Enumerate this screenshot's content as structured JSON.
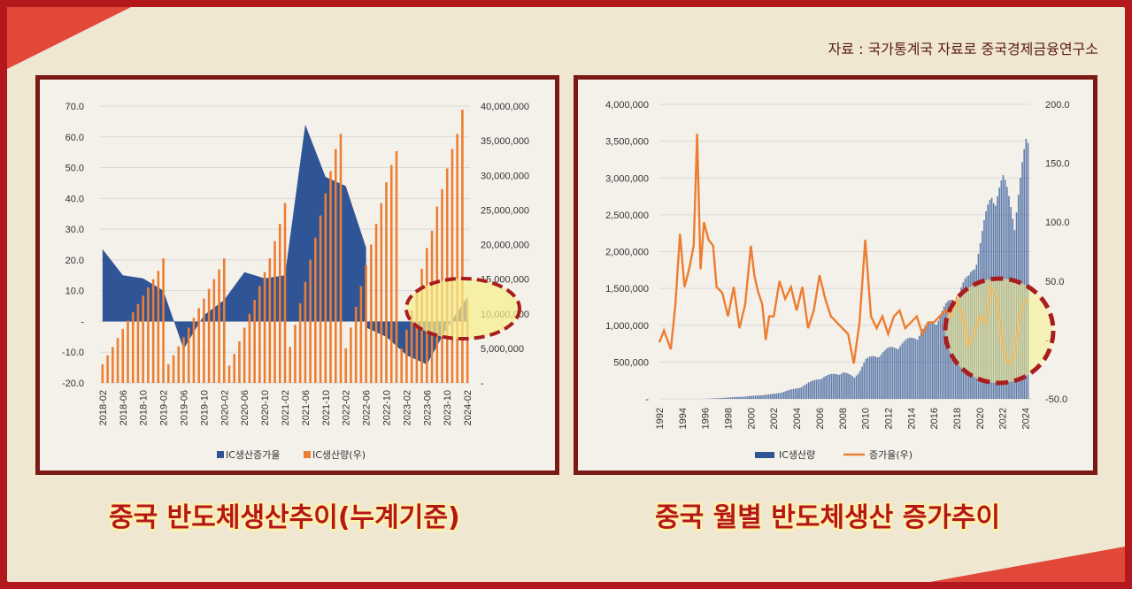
{
  "source_note": "자료 : 국가통계국 자료로 중국경제금융연구소",
  "colors": {
    "blue": "#2f5597",
    "orange": "#ed7d31",
    "frame": "#7a1a14",
    "highlight": "#f7f08a",
    "ellipse": "#a81e1e"
  },
  "chart_data": [
    {
      "type": "area+bar",
      "caption": "중국 반도체생산추이(누계기준)",
      "legend": [
        "IC생산증가율",
        "IC생산량(우)"
      ],
      "y_left_ticks": [
        "70.0",
        "60.0",
        "50.0",
        "40.0",
        "30.0",
        "20.0",
        "10.0",
        "-",
        "-10.0",
        "-20.0"
      ],
      "y_left_range": [
        -20,
        70
      ],
      "y_right_ticks": [
        "40,000,000",
        "35,000,000",
        "30,000,000",
        "25,000,000",
        "20,000,000",
        "15,000,000",
        "10,000,000",
        "5,000,000",
        "-"
      ],
      "y_right_range": [
        0,
        40000000
      ],
      "x_ticks": [
        "2018-02",
        "2018-06",
        "2018-10",
        "2019-02",
        "2019-06",
        "2019-10",
        "2020-02",
        "2020-06",
        "2020-10",
        "2021-02",
        "2021-06",
        "2021-10",
        "2022-02",
        "2022-06",
        "2022-10",
        "2023-02",
        "2023-06",
        "2023-10",
        "2024-02"
      ],
      "growth_points": [
        [
          0,
          23.5
        ],
        [
          4,
          15
        ],
        [
          8,
          14
        ],
        [
          12,
          10
        ],
        [
          16,
          -9
        ],
        [
          20,
          2
        ],
        [
          24,
          7
        ],
        [
          28,
          16
        ],
        [
          32,
          14
        ],
        [
          36,
          15
        ],
        [
          40,
          64
        ],
        [
          44,
          47
        ],
        [
          48,
          44
        ],
        [
          52,
          24
        ],
        [
          52,
          -2
        ],
        [
          56,
          -5
        ],
        [
          60,
          -11
        ],
        [
          64,
          -14
        ],
        [
          68,
          -2
        ],
        [
          72,
          8
        ]
      ],
      "bar_months": [
        0,
        1,
        2,
        3,
        4,
        5,
        6,
        7,
        8,
        9,
        10,
        11,
        12,
        13,
        14,
        15,
        16,
        17,
        18,
        19,
        20,
        21,
        22,
        23,
        24,
        25,
        26,
        27,
        28,
        29,
        30,
        31,
        32,
        33,
        34,
        35,
        36,
        37,
        38,
        39,
        40,
        41,
        42,
        43,
        44,
        45,
        46,
        47,
        48,
        49,
        50,
        51,
        52,
        53,
        54,
        55,
        56,
        57,
        58,
        59,
        60,
        61,
        62,
        63,
        64,
        65,
        66,
        67,
        68,
        69,
        70,
        71,
        72
      ],
      "bar_values": [
        2700000,
        4000000,
        5200000,
        6500000,
        7800000,
        9000000,
        10200000,
        11400000,
        12600000,
        13800000,
        15000000,
        16200000,
        18000000,
        2700000,
        4000000,
        5300000,
        6600000,
        8000000,
        9400000,
        10800000,
        12200000,
        13600000,
        15000000,
        16400000,
        18000000,
        2500000,
        4200000,
        6000000,
        8000000,
        10000000,
        12000000,
        14000000,
        16000000,
        18000000,
        20500000,
        23000000,
        26000000,
        5200000,
        8400000,
        11500000,
        14600000,
        17800000,
        21000000,
        24200000,
        27400000,
        30600000,
        33800000,
        36000000,
        5000000,
        8000000,
        11000000,
        14000000,
        17000000,
        20000000,
        23000000,
        26000000,
        29000000,
        31500000,
        33500000,
        5000000,
        7700000,
        10500000,
        13500000,
        16500000,
        19500000,
        22000000,
        25500000,
        28000000,
        31000000,
        33800000,
        36000000,
        39500000,
        12000000
      ]
    },
    {
      "type": "bar+line",
      "caption": "중국 월별 반도체생산 증가추이",
      "legend": [
        "IC생산량",
        "증가율(우)"
      ],
      "y_left_ticks": [
        "4,000,000",
        "3,500,000",
        "3,000,000",
        "2,500,000",
        "2,000,000",
        "1,500,000",
        "1,000,000",
        "500,000",
        "-"
      ],
      "y_left_range": [
        0,
        4000000
      ],
      "y_right_ticks": [
        "200.0",
        "150.0",
        "100.0",
        "50.0",
        "-",
        "-50.0"
      ],
      "y_right_range": [
        -50,
        200
      ],
      "x_ticks": [
        "1992",
        "1994",
        "1996",
        "1998",
        "2000",
        "2002",
        "2004",
        "2006",
        "2008",
        "2010",
        "2012",
        "2014",
        "2016",
        "2018",
        "2020",
        "2022",
        "2024"
      ],
      "production_curve": [
        [
          1992,
          0
        ],
        [
          1996,
          0
        ],
        [
          1998,
          20000
        ],
        [
          2000,
          40000
        ],
        [
          2002,
          70000
        ],
        [
          2004,
          150000
        ],
        [
          2006,
          300000
        ],
        [
          2008,
          380000
        ],
        [
          2009,
          300000
        ],
        [
          2010,
          550000
        ],
        [
          2012,
          700000
        ],
        [
          2014,
          850000
        ],
        [
          2016,
          1100000
        ],
        [
          2018,
          1500000
        ],
        [
          2019,
          1700000
        ],
        [
          2020,
          2200000
        ],
        [
          2021,
          2900000
        ],
        [
          2022,
          3050000
        ],
        [
          2023,
          2600000
        ],
        [
          2024,
          3550000
        ]
      ],
      "growth_points": [
        [
          1992,
          -2
        ],
        [
          1992.4,
          8
        ],
        [
          1993,
          -8
        ],
        [
          1993.4,
          30
        ],
        [
          1993.8,
          90
        ],
        [
          1994.2,
          45
        ],
        [
          1994.6,
          60
        ],
        [
          1995,
          80
        ],
        [
          1995.3,
          175
        ],
        [
          1995.6,
          60
        ],
        [
          1995.9,
          100
        ],
        [
          1996.3,
          85
        ],
        [
          1996.7,
          80
        ],
        [
          1997,
          45
        ],
        [
          1997.5,
          40
        ],
        [
          1998,
          20
        ],
        [
          1998.5,
          45
        ],
        [
          1999,
          10
        ],
        [
          1999.5,
          30
        ],
        [
          2000,
          80
        ],
        [
          2000.3,
          55
        ],
        [
          2000.6,
          42
        ],
        [
          2001,
          30
        ],
        [
          2001.3,
          0
        ],
        [
          2001.6,
          20
        ],
        [
          2002,
          20
        ],
        [
          2002.5,
          50
        ],
        [
          2003,
          35
        ],
        [
          2003.5,
          45
        ],
        [
          2004,
          25
        ],
        [
          2004.5,
          45
        ],
        [
          2005,
          10
        ],
        [
          2005.5,
          25
        ],
        [
          2006,
          55
        ],
        [
          2006.5,
          35
        ],
        [
          2007,
          20
        ],
        [
          2007.5,
          15
        ],
        [
          2008,
          10
        ],
        [
          2008.5,
          5
        ],
        [
          2009,
          -20
        ],
        [
          2009.5,
          15
        ],
        [
          2010,
          85
        ],
        [
          2010.5,
          20
        ],
        [
          2011,
          10
        ],
        [
          2011.5,
          20
        ],
        [
          2012,
          5
        ],
        [
          2012.5,
          20
        ],
        [
          2013,
          25
        ],
        [
          2013.5,
          10
        ],
        [
          2014,
          15
        ],
        [
          2014.5,
          20
        ],
        [
          2015,
          5
        ],
        [
          2015.5,
          15
        ],
        [
          2016,
          15
        ],
        [
          2016.5,
          20
        ],
        [
          2017,
          25
        ],
        [
          2017.5,
          20
        ],
        [
          2018,
          35
        ],
        [
          2018.5,
          20
        ],
        [
          2019,
          -5
        ],
        [
          2019.5,
          5
        ],
        [
          2020,
          20
        ],
        [
          2020.5,
          15
        ],
        [
          2021,
          45
        ],
        [
          2021.5,
          35
        ],
        [
          2022,
          -5
        ],
        [
          2022.5,
          -20
        ],
        [
          2023,
          -15
        ],
        [
          2023.5,
          20
        ],
        [
          2024,
          35
        ]
      ]
    }
  ]
}
